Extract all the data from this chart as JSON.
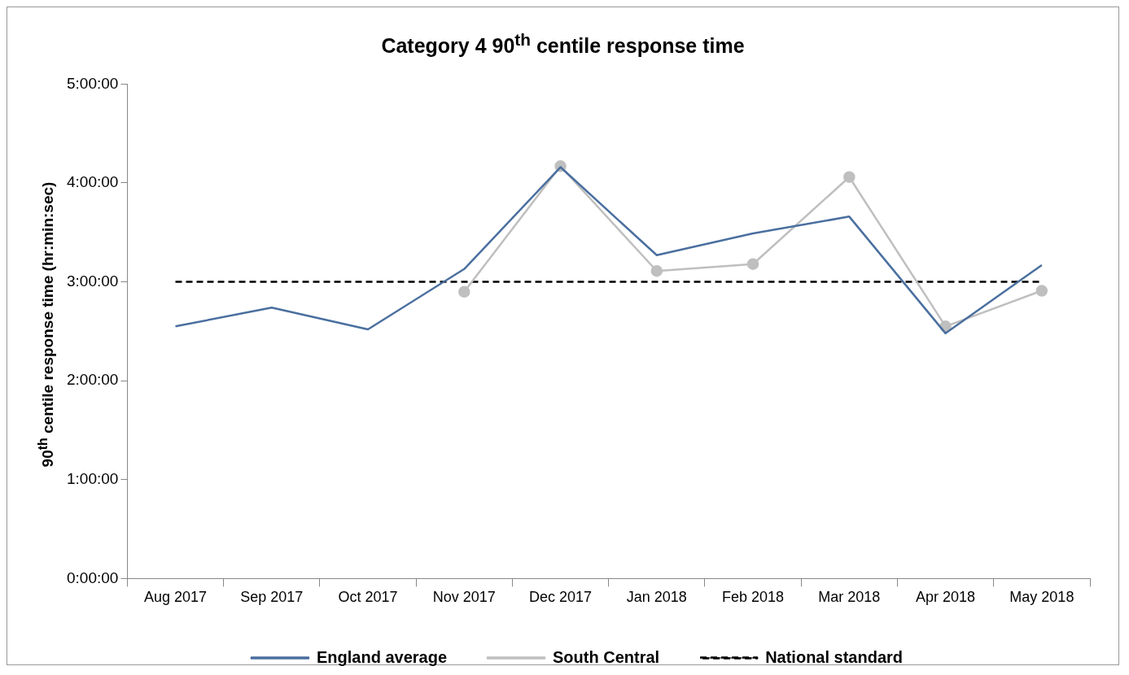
{
  "chart_data": {
    "type": "line",
    "title": "Category 4 90$^{th}$ centile response time",
    "ylabel": "90$^{th}$ centile response time (hr:min:sec)",
    "categories": [
      "Aug 2017",
      "Sep 2017",
      "Oct 2017",
      "Nov 2017",
      "Dec 2017",
      "Jan 2018",
      "Feb 2018",
      "Mar 2018",
      "Apr 2018",
      "May 2018"
    ],
    "series": [
      {
        "name": "England average",
        "color": "#4a6f9f",
        "marker": "none",
        "values": [
          2.55,
          2.74,
          2.52,
          3.13,
          4.16,
          3.27,
          3.49,
          3.66,
          2.48,
          3.17
        ]
      },
      {
        "name": "South Central",
        "color": "#bfbfbf",
        "marker": "circle",
        "values": [
          null,
          null,
          null,
          2.9,
          4.17,
          3.11,
          3.18,
          4.06,
          2.55,
          2.91
        ]
      },
      {
        "name": "National standard",
        "color": "#000000",
        "marker": "none",
        "line_style": "dashed",
        "values": [
          3,
          3,
          3,
          3,
          3,
          3,
          3,
          3,
          3,
          3
        ]
      }
    ],
    "ylim": [
      0,
      5
    ],
    "yticks": [
      {
        "value": 0,
        "label": "0:00:00"
      },
      {
        "value": 1,
        "label": "1:00:00"
      },
      {
        "value": 2,
        "label": "2:00:00"
      },
      {
        "value": 3,
        "label": "3:00:00"
      },
      {
        "value": 4,
        "label": "4:00:00"
      },
      {
        "value": 5,
        "label": "5:00:00"
      }
    ],
    "grid": false,
    "legend": "bottom"
  }
}
